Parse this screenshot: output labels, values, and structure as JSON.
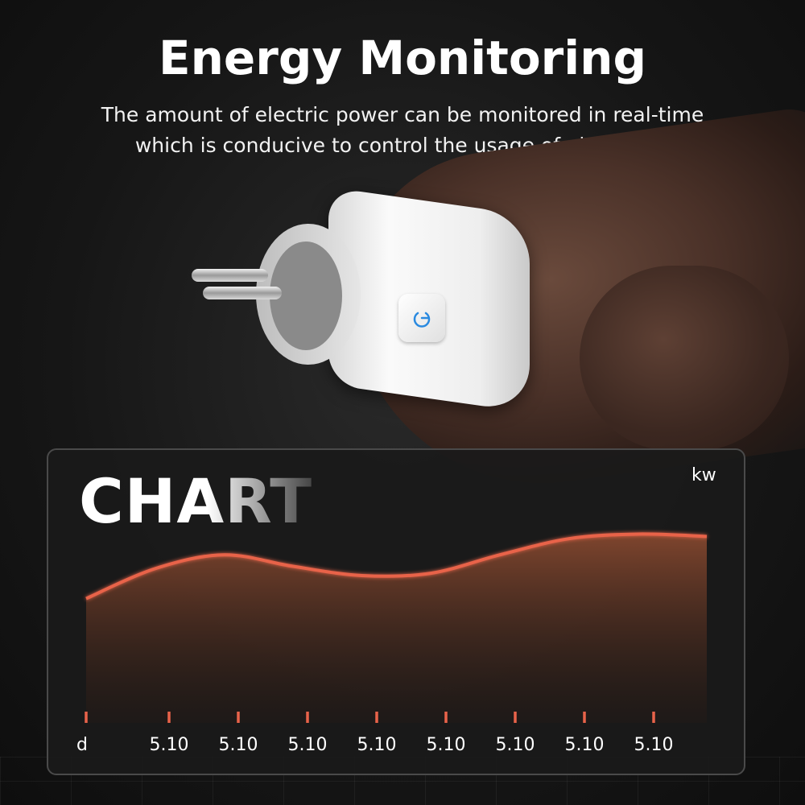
{
  "header": {
    "title": "Energy Monitoring",
    "subtitle_line1": "The amount of electric power can be monitored in real-time",
    "subtitle_line2": "which is conducive to control the usage of electricity."
  },
  "product": {
    "icons": [
      "power-icon"
    ],
    "accent_color": "#2a8ae0"
  },
  "chart_data": {
    "type": "area",
    "title": "CHART",
    "ylabel": "kw",
    "xlabel": "d",
    "x_tick_labels": [
      "5.10",
      "5.10",
      "5.10",
      "5.10",
      "5.10",
      "5.10",
      "5.10",
      "5.10"
    ],
    "curve_relative_levels": [
      0.54,
      0.67,
      0.73,
      0.68,
      0.64,
      0.65,
      0.73,
      0.8,
      0.82,
      0.81
    ],
    "y_range_relative": [
      0,
      1
    ],
    "grid": false,
    "line_color": "#e8634a"
  }
}
